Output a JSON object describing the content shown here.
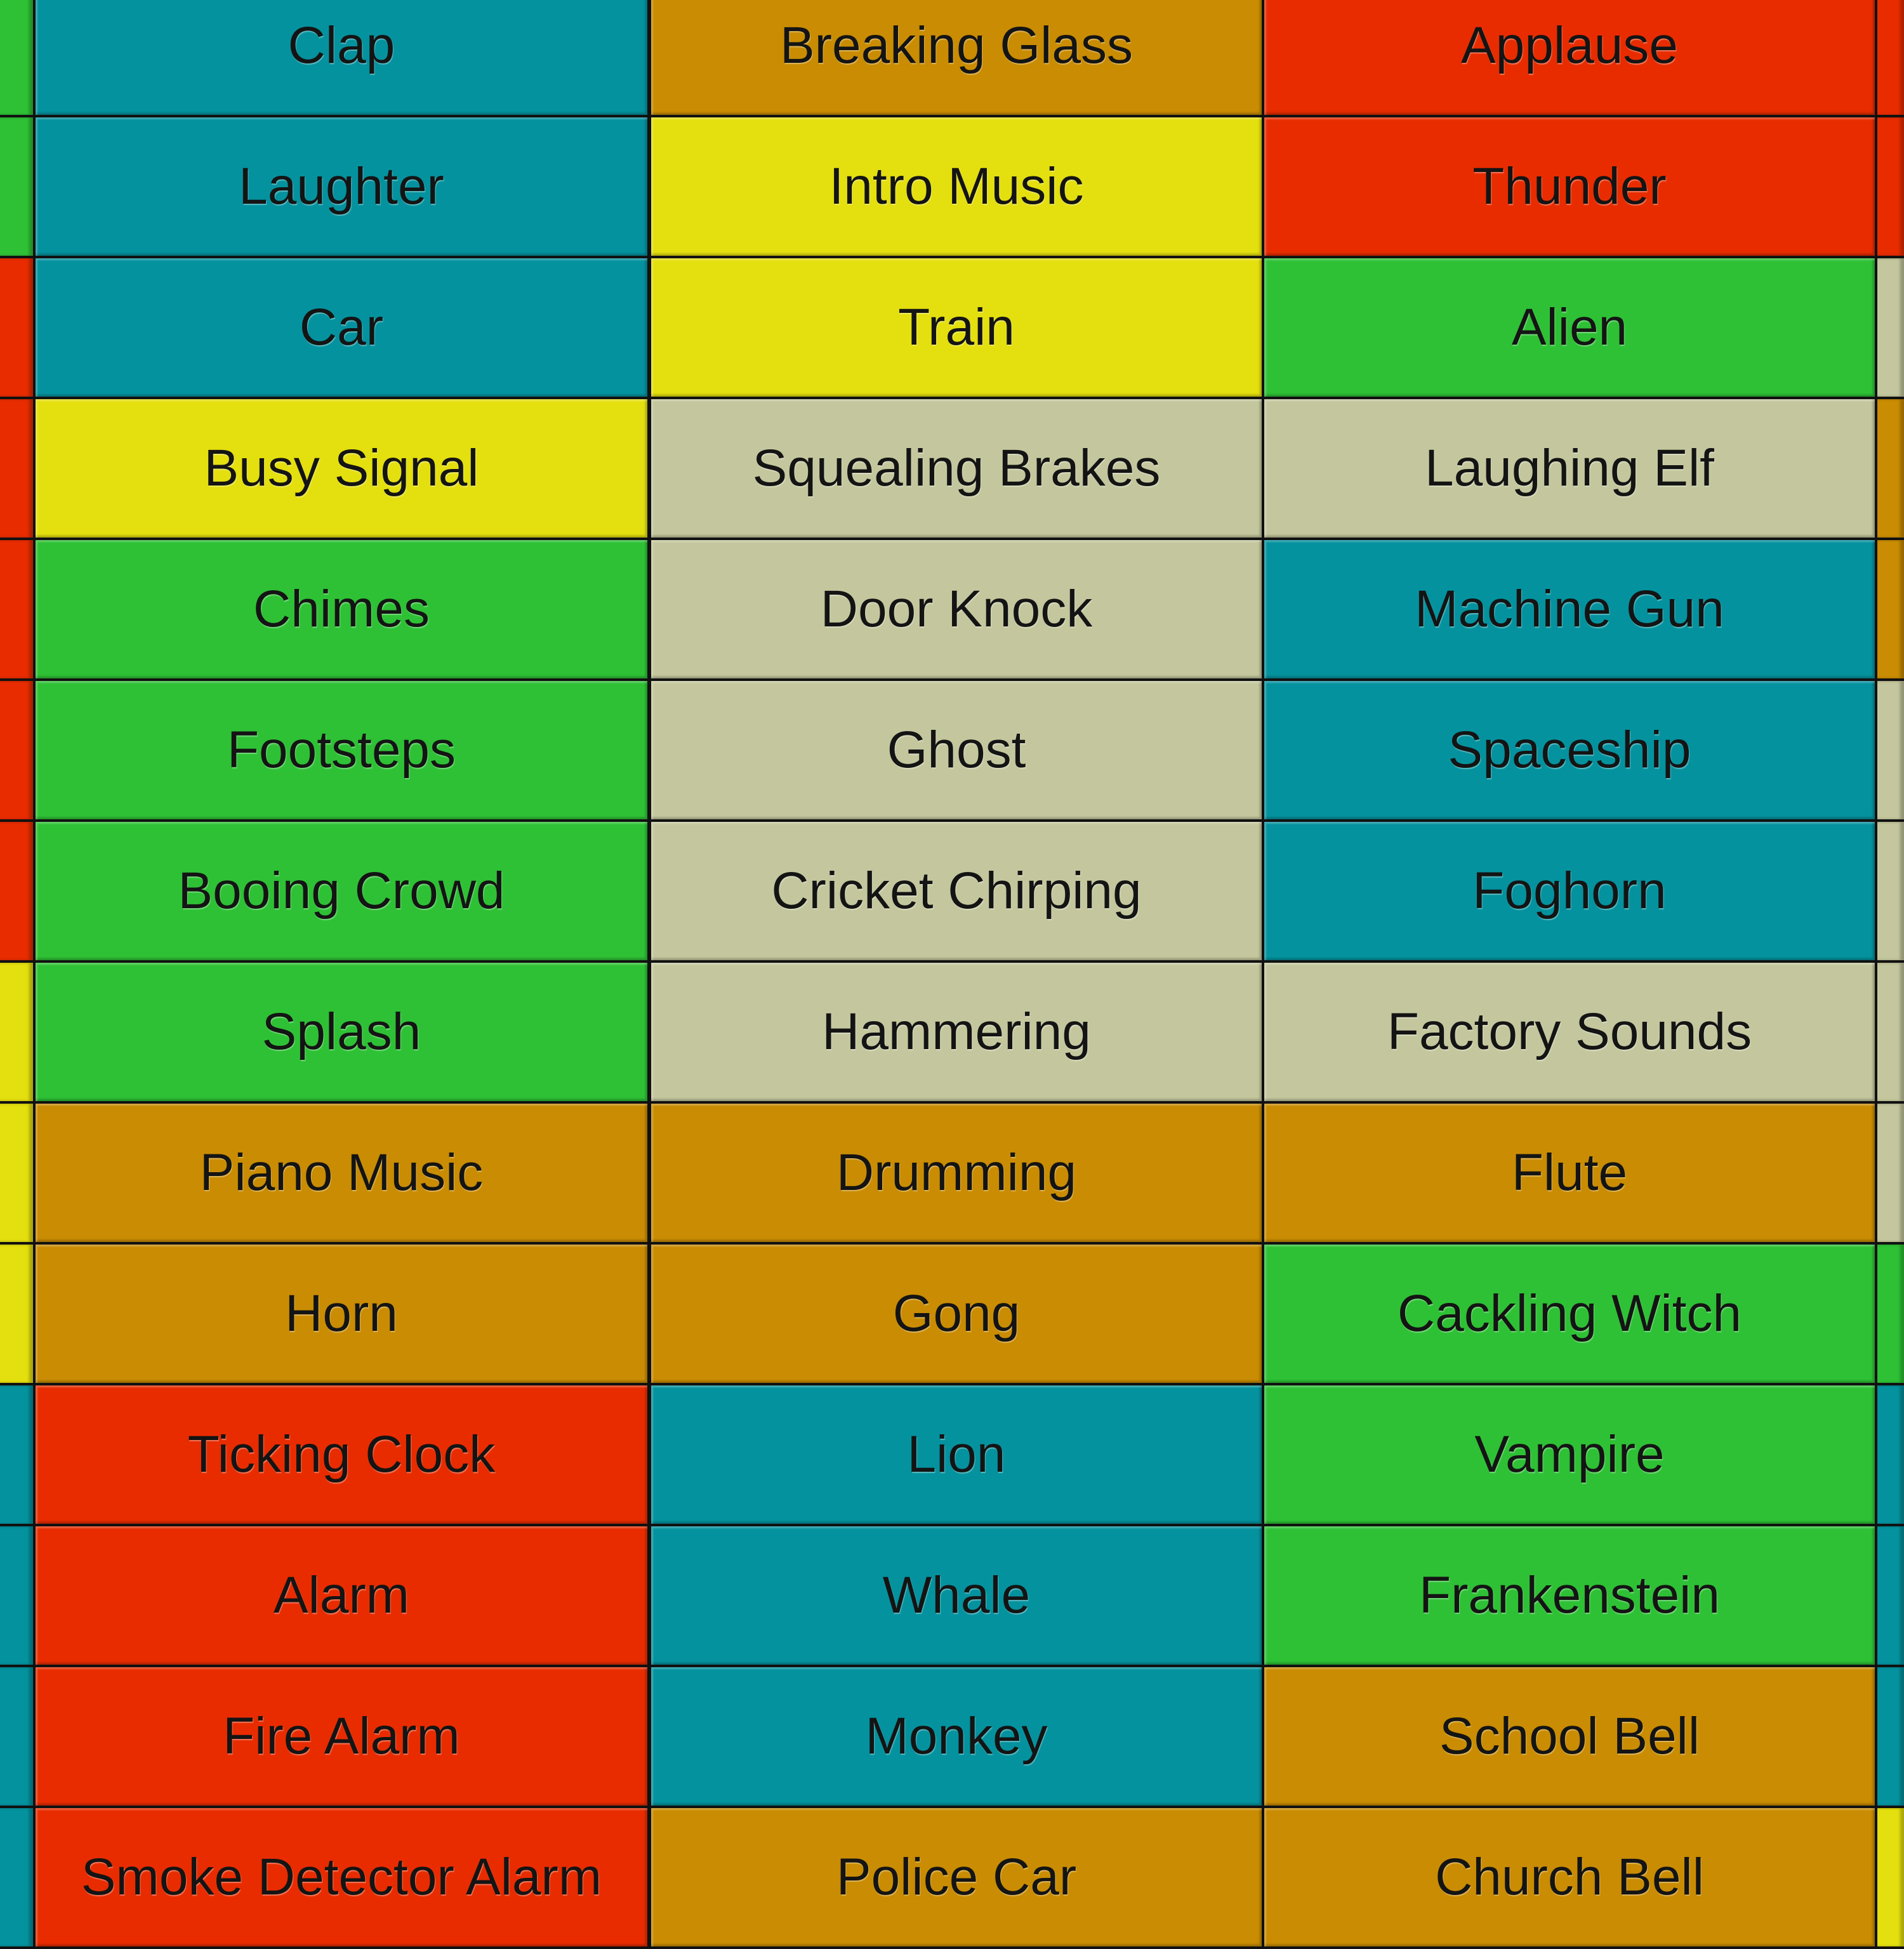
{
  "colors": {
    "teal": "#04929e",
    "orange": "#c98c02",
    "red": "#e82c00",
    "yellow": "#e4df0e",
    "green": "#2ec135",
    "beige": "#c4c79d"
  },
  "left_strip": [
    "green",
    "green",
    "red",
    "red",
    "red",
    "red",
    "red",
    "yellow",
    "yellow",
    "yellow",
    "teal",
    "teal",
    "teal",
    "teal"
  ],
  "right_strip": [
    "red",
    "red",
    "beige",
    "orange",
    "orange",
    "beige",
    "beige",
    "beige",
    "beige",
    "green",
    "teal",
    "teal",
    "teal",
    "yellow"
  ],
  "rows": [
    [
      {
        "label": "Clap",
        "color": "teal"
      },
      {
        "label": "Breaking Glass",
        "color": "orange"
      },
      {
        "label": "Applause",
        "color": "red"
      }
    ],
    [
      {
        "label": "Laughter",
        "color": "teal"
      },
      {
        "label": "Intro Music",
        "color": "yellow"
      },
      {
        "label": "Thunder",
        "color": "red"
      }
    ],
    [
      {
        "label": "Car",
        "color": "teal"
      },
      {
        "label": "Train",
        "color": "yellow"
      },
      {
        "label": "Alien",
        "color": "green"
      }
    ],
    [
      {
        "label": "Busy Signal",
        "color": "yellow"
      },
      {
        "label": "Squealing Brakes",
        "color": "beige"
      },
      {
        "label": "Laughing Elf",
        "color": "beige"
      }
    ],
    [
      {
        "label": "Chimes",
        "color": "green"
      },
      {
        "label": "Door Knock",
        "color": "beige"
      },
      {
        "label": "Machine Gun",
        "color": "teal"
      }
    ],
    [
      {
        "label": "Footsteps",
        "color": "green"
      },
      {
        "label": "Ghost",
        "color": "beige"
      },
      {
        "label": "Spaceship",
        "color": "teal"
      }
    ],
    [
      {
        "label": "Booing Crowd",
        "color": "green"
      },
      {
        "label": "Cricket Chirping",
        "color": "beige"
      },
      {
        "label": "Foghorn",
        "color": "teal"
      }
    ],
    [
      {
        "label": "Splash",
        "color": "green"
      },
      {
        "label": "Hammering",
        "color": "beige"
      },
      {
        "label": "Factory Sounds",
        "color": "beige"
      }
    ],
    [
      {
        "label": "Piano Music",
        "color": "orange"
      },
      {
        "label": "Drumming",
        "color": "orange"
      },
      {
        "label": "Flute",
        "color": "orange"
      }
    ],
    [
      {
        "label": "Horn",
        "color": "orange"
      },
      {
        "label": "Gong",
        "color": "orange"
      },
      {
        "label": "Cackling Witch",
        "color": "green"
      }
    ],
    [
      {
        "label": "Ticking Clock",
        "color": "red"
      },
      {
        "label": "Lion",
        "color": "teal"
      },
      {
        "label": "Vampire",
        "color": "green"
      }
    ],
    [
      {
        "label": "Alarm",
        "color": "red"
      },
      {
        "label": "Whale",
        "color": "teal"
      },
      {
        "label": "Frankenstein",
        "color": "green"
      }
    ],
    [
      {
        "label": "Fire Alarm",
        "color": "red"
      },
      {
        "label": "Monkey",
        "color": "teal"
      },
      {
        "label": "School Bell",
        "color": "orange"
      }
    ],
    [
      {
        "label": "Smoke Detector Alarm",
        "color": "red"
      },
      {
        "label": "Police Car",
        "color": "orange"
      },
      {
        "label": "Church Bell",
        "color": "orange"
      }
    ]
  ]
}
